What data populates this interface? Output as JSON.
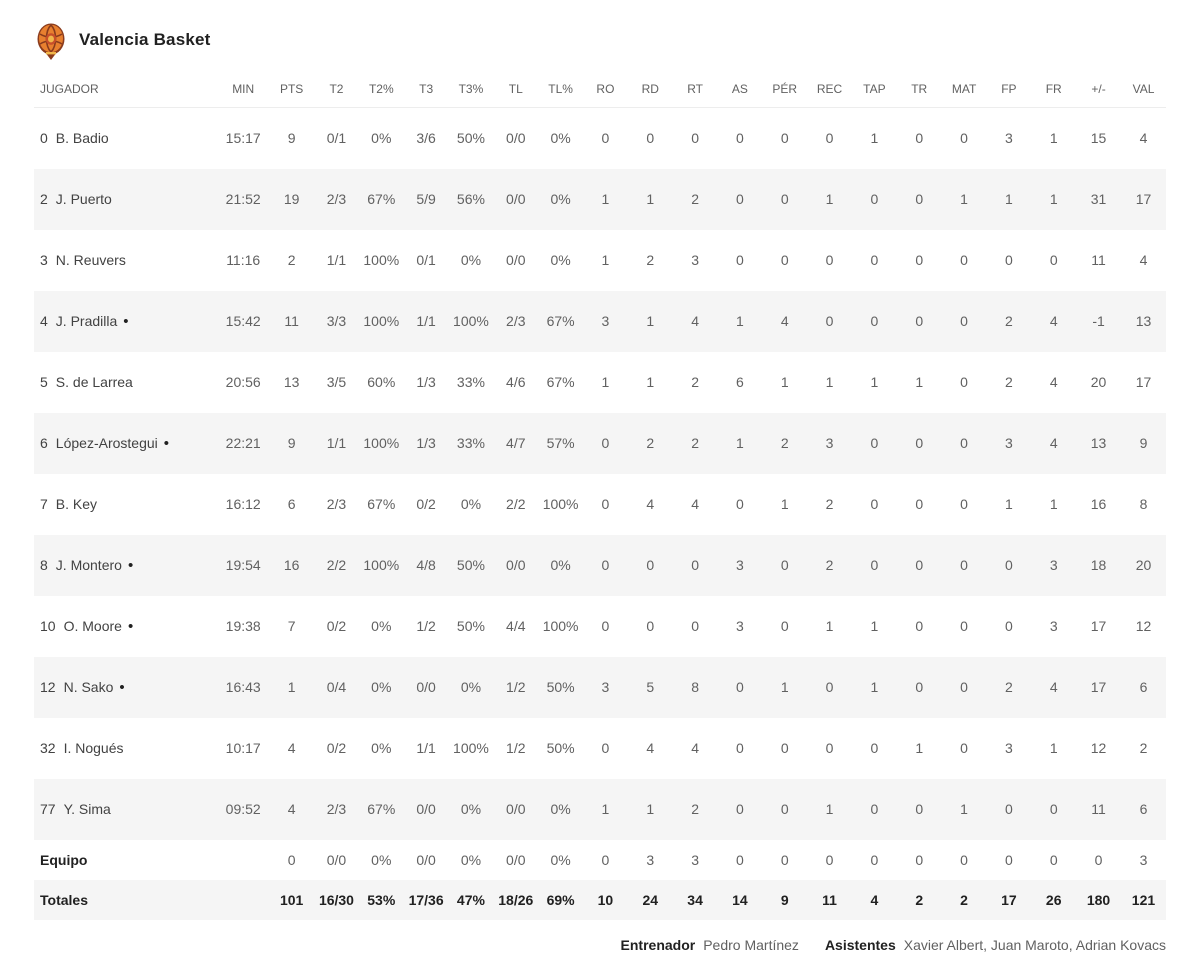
{
  "team": {
    "name": "Valencia Basket",
    "logo_icon": "basketball-crest-icon",
    "logo_colors": {
      "ball": "#e8802f",
      "seams": "#7a3b1a",
      "accent": "#c94f2a"
    }
  },
  "table": {
    "columns": [
      "JUGADOR",
      "MIN",
      "PTS",
      "T2",
      "T2%",
      "T3",
      "T3%",
      "TL",
      "TL%",
      "RO",
      "RD",
      "RT",
      "AS",
      "PÉR",
      "REC",
      "TAP",
      "TR",
      "MAT",
      "FP",
      "FR",
      "+/-",
      "VAL"
    ],
    "rows": [
      {
        "dorsal": "0",
        "name": "B. Badio",
        "starter": false,
        "stats": [
          "15:17",
          "9",
          "0/1",
          "0%",
          "3/6",
          "50%",
          "0/0",
          "0%",
          "0",
          "0",
          "0",
          "0",
          "0",
          "0",
          "1",
          "0",
          "0",
          "3",
          "1",
          "15",
          "4"
        ]
      },
      {
        "dorsal": "2",
        "name": "J. Puerto",
        "starter": false,
        "stats": [
          "21:52",
          "19",
          "2/3",
          "67%",
          "5/9",
          "56%",
          "0/0",
          "0%",
          "1",
          "1",
          "2",
          "0",
          "0",
          "1",
          "0",
          "0",
          "1",
          "1",
          "1",
          "31",
          "17"
        ]
      },
      {
        "dorsal": "3",
        "name": "N. Reuvers",
        "starter": false,
        "stats": [
          "11:16",
          "2",
          "1/1",
          "100%",
          "0/1",
          "0%",
          "0/0",
          "0%",
          "1",
          "2",
          "3",
          "0",
          "0",
          "0",
          "0",
          "0",
          "0",
          "0",
          "0",
          "11",
          "4"
        ]
      },
      {
        "dorsal": "4",
        "name": "J. Pradilla",
        "starter": true,
        "stats": [
          "15:42",
          "11",
          "3/3",
          "100%",
          "1/1",
          "100%",
          "2/3",
          "67%",
          "3",
          "1",
          "4",
          "1",
          "4",
          "0",
          "0",
          "0",
          "0",
          "2",
          "4",
          "-1",
          "13"
        ]
      },
      {
        "dorsal": "5",
        "name": "S. de Larrea",
        "starter": false,
        "stats": [
          "20:56",
          "13",
          "3/5",
          "60%",
          "1/3",
          "33%",
          "4/6",
          "67%",
          "1",
          "1",
          "2",
          "6",
          "1",
          "1",
          "1",
          "1",
          "0",
          "2",
          "4",
          "20",
          "17"
        ]
      },
      {
        "dorsal": "6",
        "name": "López-Arostegui",
        "starter": true,
        "stats": [
          "22:21",
          "9",
          "1/1",
          "100%",
          "1/3",
          "33%",
          "4/7",
          "57%",
          "0",
          "2",
          "2",
          "1",
          "2",
          "3",
          "0",
          "0",
          "0",
          "3",
          "4",
          "13",
          "9"
        ]
      },
      {
        "dorsal": "7",
        "name": "B. Key",
        "starter": false,
        "stats": [
          "16:12",
          "6",
          "2/3",
          "67%",
          "0/2",
          "0%",
          "2/2",
          "100%",
          "0",
          "4",
          "4",
          "0",
          "1",
          "2",
          "0",
          "0",
          "0",
          "1",
          "1",
          "16",
          "8"
        ]
      },
      {
        "dorsal": "8",
        "name": "J. Montero",
        "starter": true,
        "stats": [
          "19:54",
          "16",
          "2/2",
          "100%",
          "4/8",
          "50%",
          "0/0",
          "0%",
          "0",
          "0",
          "0",
          "3",
          "0",
          "2",
          "0",
          "0",
          "0",
          "0",
          "3",
          "18",
          "20"
        ]
      },
      {
        "dorsal": "10",
        "name": "O. Moore",
        "starter": true,
        "stats": [
          "19:38",
          "7",
          "0/2",
          "0%",
          "1/2",
          "50%",
          "4/4",
          "100%",
          "0",
          "0",
          "0",
          "3",
          "0",
          "1",
          "1",
          "0",
          "0",
          "0",
          "3",
          "17",
          "12"
        ]
      },
      {
        "dorsal": "12",
        "name": "N. Sako",
        "starter": true,
        "stats": [
          "16:43",
          "1",
          "0/4",
          "0%",
          "0/0",
          "0%",
          "1/2",
          "50%",
          "3",
          "5",
          "8",
          "0",
          "1",
          "0",
          "1",
          "0",
          "0",
          "2",
          "4",
          "17",
          "6"
        ]
      },
      {
        "dorsal": "32",
        "name": "I. Nogués",
        "starter": false,
        "stats": [
          "10:17",
          "4",
          "0/2",
          "0%",
          "1/1",
          "100%",
          "1/2",
          "50%",
          "0",
          "4",
          "4",
          "0",
          "0",
          "0",
          "0",
          "1",
          "0",
          "3",
          "1",
          "12",
          "2"
        ]
      },
      {
        "dorsal": "77",
        "name": "Y. Sima",
        "starter": false,
        "stats": [
          "09:52",
          "4",
          "2/3",
          "67%",
          "0/0",
          "0%",
          "0/0",
          "0%",
          "1",
          "1",
          "2",
          "0",
          "0",
          "1",
          "0",
          "0",
          "1",
          "0",
          "0",
          "11",
          "6"
        ]
      }
    ],
    "equipo_row": {
      "dorsal": "",
      "name": "Equipo",
      "starter": false,
      "stats": [
        "",
        "0",
        "0/0",
        "0%",
        "0/0",
        "0%",
        "0/0",
        "0%",
        "0",
        "3",
        "3",
        "0",
        "0",
        "0",
        "0",
        "0",
        "0",
        "0",
        "0",
        "0",
        "3"
      ]
    },
    "totals_row": {
      "dorsal": "",
      "name": "Totales",
      "starter": false,
      "stats": [
        "",
        "101",
        "16/30",
        "53%",
        "17/36",
        "47%",
        "18/26",
        "69%",
        "10",
        "24",
        "34",
        "14",
        "9",
        "11",
        "4",
        "2",
        "2",
        "17",
        "26",
        "180",
        "121"
      ]
    }
  },
  "footer": {
    "coach_label": "Entrenador",
    "coach_name": "Pedro Martínez",
    "assistants_label": "Asistentes",
    "assistants_names": "Xavier Albert, Juan Maroto, Adrian Kovacs"
  }
}
